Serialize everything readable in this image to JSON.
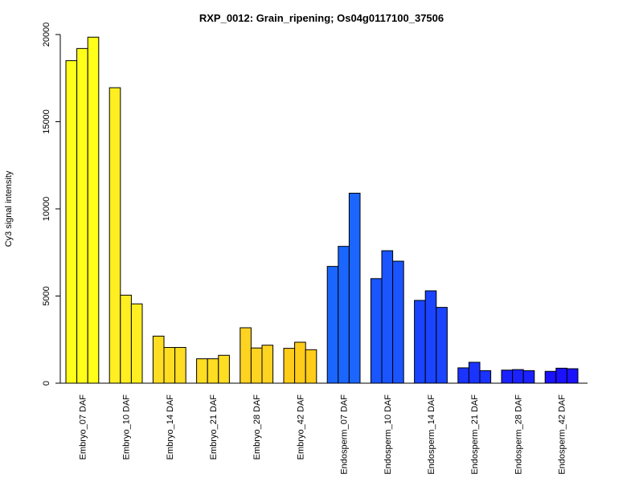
{
  "chart_data": {
    "type": "bar",
    "title": "RXP_0012: Grain_ripening; Os04g0117100_37506",
    "xlabel": "",
    "ylabel": "Cy3 signal intensity",
    "ylim": [
      0,
      20000
    ],
    "yticks": [
      0,
      5000,
      10000,
      15000,
      20000
    ],
    "grid": false,
    "legend": "none",
    "categories": [
      "Embryo_07 DAF",
      "Embryo_10 DAF",
      "Embryo_14 DAF",
      "Embryo_21 DAF",
      "Embryo_28 DAF",
      "Embryo_42 DAF",
      "Endosperm_07 DAF",
      "Endosperm_10 DAF",
      "Endosperm_14 DAF",
      "Endosperm_21 DAF",
      "Endosperm_28 DAF",
      "Endosperm_42 DAF"
    ],
    "replicates_per_category": 3,
    "values": [
      [
        18500,
        19200,
        19850
      ],
      [
        16950,
        5050,
        4550
      ],
      [
        2700,
        2050,
        2050
      ],
      [
        1400,
        1400,
        1600
      ],
      [
        3180,
        2020,
        2180
      ],
      [
        2000,
        2350,
        1920
      ],
      [
        6700,
        7850,
        10900
      ],
      [
        6000,
        7600,
        7000
      ],
      [
        4750,
        5300,
        4350
      ],
      [
        880,
        1200,
        720
      ],
      [
        750,
        780,
        720
      ],
      [
        680,
        860,
        830
      ]
    ],
    "colors": [
      "#ffff1a",
      "#ffee22",
      "#ffdd22",
      "#ffdd22",
      "#ffd322",
      "#ffcc1a",
      "#1a66ff",
      "#1a55ff",
      "#1a44ff",
      "#1a33ff",
      "#1a22ff",
      "#1a11ff"
    ]
  }
}
